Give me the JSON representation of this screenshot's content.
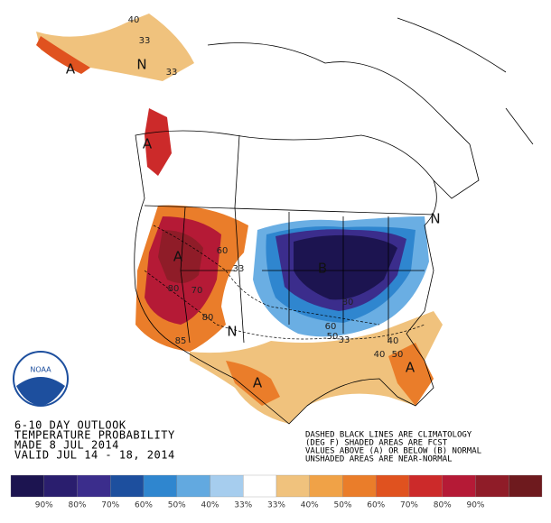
{
  "header": {
    "lines": [
      "6-10 DAY OUTLOOK",
      "TEMPERATURE PROBABILITY",
      "MADE  8 JUL 2014",
      "VALID  JUL 14 - 18, 2014"
    ]
  },
  "notes": [
    "DASHED BLACK LINES ARE CLIMATOLOGY",
    "(DEG F) SHADED AREAS ARE FCST",
    "VALUES ABOVE (A) OR BELOW (B) NORMAL",
    "UNSHADED AREAS ARE NEAR-NORMAL"
  ],
  "logo": "NOAA",
  "map_labels": [
    "A",
    "N",
    "40",
    "33",
    "33",
    "A",
    "A",
    "80",
    "70",
    "60",
    "33",
    "N",
    "80",
    "85",
    "A",
    "B",
    "80",
    "60",
    "50",
    "33",
    "40",
    "40",
    "50",
    "A",
    "N"
  ],
  "legend": {
    "colors": [
      "#1c1450",
      "#2a1e6e",
      "#3b2d8c",
      "#1d4f9e",
      "#2f86cf",
      "#62a9e0",
      "#a6cdee",
      "#ffffff",
      "#f0c27d",
      "#f0a247",
      "#ea7d2a",
      "#e0521f",
      "#cc2a2a",
      "#b51a36",
      "#8f1c28",
      "#6e1a1e"
    ],
    "labels": [
      "90%",
      "80%",
      "70%",
      "60%",
      "50%",
      "40%",
      "33%",
      "33%",
      "40%",
      "50%",
      "60%",
      "70%",
      "80%",
      "90%"
    ]
  }
}
